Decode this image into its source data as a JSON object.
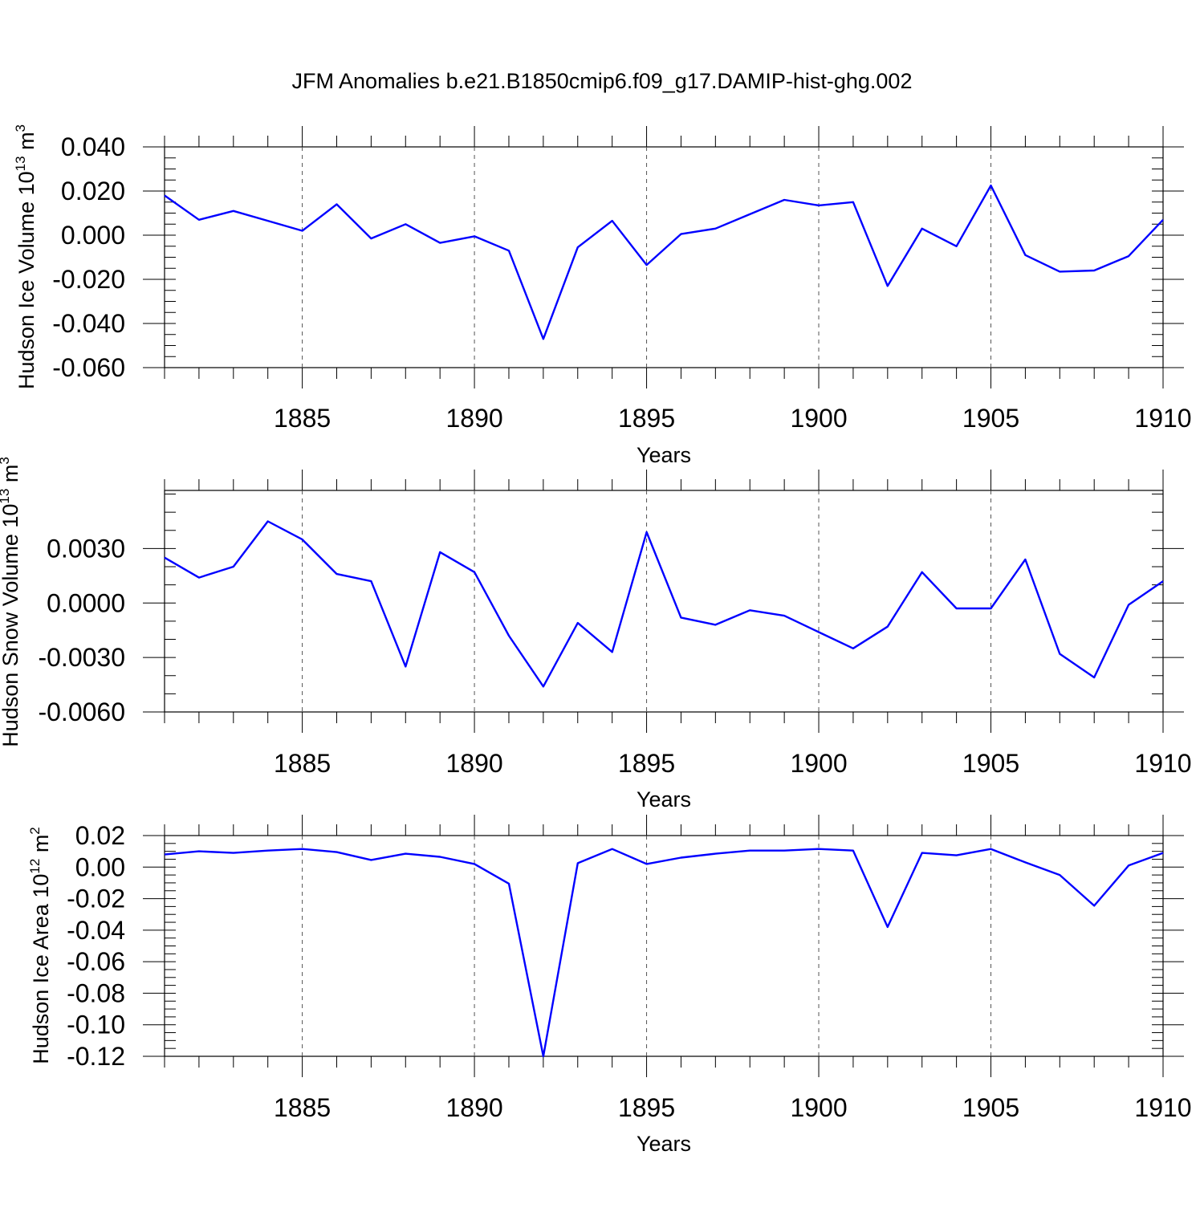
{
  "title": "JFM Anomalies b.e21.B1850cmip6.f09_g17.DAMIP-hist-ghg.002",
  "series_color": "#0000ff",
  "chart_data": [
    {
      "type": "line",
      "ylabel": "Hudson Ice Volume 10",
      "ylabel_exp": "13",
      "ylabel_unit": " m",
      "ylabel_unit_exp": "3",
      "xlabel": "Years",
      "xlim": [
        1881,
        1910
      ],
      "ylim": [
        -0.06,
        0.04
      ],
      "x_ticks": [
        "1885",
        "1890",
        "1895",
        "1900",
        "1905",
        "1910"
      ],
      "y_ticks": [
        "0.040",
        "0.020",
        "0.000",
        "-0.020",
        "-0.040",
        "-0.060"
      ],
      "y_tick_values": [
        0.04,
        0.02,
        0.0,
        -0.02,
        -0.04,
        -0.06
      ],
      "y_minor_step": 0.005,
      "grid": "vertical dashed at major x ticks",
      "x": [
        1881,
        1882,
        1883,
        1884,
        1885,
        1886,
        1887,
        1888,
        1889,
        1890,
        1891,
        1892,
        1893,
        1894,
        1895,
        1896,
        1897,
        1898,
        1899,
        1900,
        1901,
        1902,
        1903,
        1904,
        1905,
        1906,
        1907,
        1908,
        1909,
        1910
      ],
      "values": [
        0.018,
        0.007,
        0.011,
        0.0065,
        0.002,
        0.014,
        -0.0015,
        0.005,
        -0.0035,
        -0.0005,
        -0.007,
        -0.047,
        -0.0055,
        0.0065,
        -0.0135,
        0.0005,
        0.003,
        0.0095,
        0.016,
        0.0135,
        0.015,
        -0.023,
        0.003,
        -0.005,
        0.0225,
        -0.009,
        -0.0165,
        -0.016,
        -0.0095,
        0.007
      ]
    },
    {
      "type": "line",
      "ylabel": "Hudson Snow Volume 10",
      "ylabel_exp": "13",
      "ylabel_unit": " m",
      "ylabel_unit_exp": "3",
      "xlabel": "Years",
      "xlim": [
        1881,
        1910
      ],
      "ylim": [
        -0.006,
        0.0062
      ],
      "x_ticks": [
        "1885",
        "1890",
        "1895",
        "1900",
        "1905",
        "1910"
      ],
      "y_ticks": [
        "0.0030",
        "0.0000",
        "-0.0030",
        "-0.0060"
      ],
      "y_tick_values": [
        0.003,
        0.0,
        -0.003,
        -0.006
      ],
      "y_minor_step": 0.001,
      "grid": "vertical dashed at major x ticks",
      "x": [
        1881,
        1882,
        1883,
        1884,
        1885,
        1886,
        1887,
        1888,
        1889,
        1890,
        1891,
        1892,
        1893,
        1894,
        1895,
        1896,
        1897,
        1898,
        1899,
        1900,
        1901,
        1902,
        1903,
        1904,
        1905,
        1906,
        1907,
        1908,
        1909,
        1910
      ],
      "values": [
        0.0025,
        0.0014,
        0.002,
        0.0045,
        0.0035,
        0.0016,
        0.0012,
        -0.0035,
        0.0028,
        0.0017,
        -0.0018,
        -0.0046,
        -0.0011,
        -0.0027,
        0.0039,
        -0.0008,
        -0.0012,
        -0.0004,
        -0.0007,
        -0.0016,
        -0.0025,
        -0.0013,
        0.0017,
        -0.0003,
        -0.0003,
        0.0024,
        -0.0028,
        -0.0041,
        -0.0001,
        0.0012
      ]
    },
    {
      "type": "line",
      "ylabel": "Hudson Ice Area 10",
      "ylabel_exp": "12",
      "ylabel_unit": " m",
      "ylabel_unit_exp": "2",
      "xlabel": "Years",
      "xlim": [
        1881,
        1910
      ],
      "ylim": [
        -0.12,
        0.02
      ],
      "x_ticks": [
        "1885",
        "1890",
        "1895",
        "1900",
        "1905",
        "1910"
      ],
      "y_ticks": [
        "0.02",
        "0.00",
        "-0.02",
        "-0.04",
        "-0.06",
        "-0.08",
        "-0.10",
        "-0.12"
      ],
      "y_tick_values": [
        0.02,
        0.0,
        -0.02,
        -0.04,
        -0.06,
        -0.08,
        -0.1,
        -0.12
      ],
      "y_minor_step": 0.005,
      "grid": "vertical dashed at major x ticks",
      "x": [
        1881,
        1882,
        1883,
        1884,
        1885,
        1886,
        1887,
        1888,
        1889,
        1890,
        1891,
        1892,
        1893,
        1894,
        1895,
        1896,
        1897,
        1898,
        1899,
        1900,
        1901,
        1902,
        1903,
        1904,
        1905,
        1906,
        1907,
        1908,
        1909,
        1910
      ],
      "values": [
        0.008,
        0.01,
        0.009,
        0.0105,
        0.0115,
        0.0095,
        0.0045,
        0.0085,
        0.0065,
        0.002,
        -0.0105,
        -0.12,
        0.0025,
        0.0115,
        0.002,
        0.006,
        0.0085,
        0.0105,
        0.0105,
        0.0115,
        0.0105,
        -0.038,
        0.009,
        0.0075,
        0.0115,
        0.003,
        -0.005,
        -0.0245,
        0.001,
        0.009
      ]
    }
  ]
}
